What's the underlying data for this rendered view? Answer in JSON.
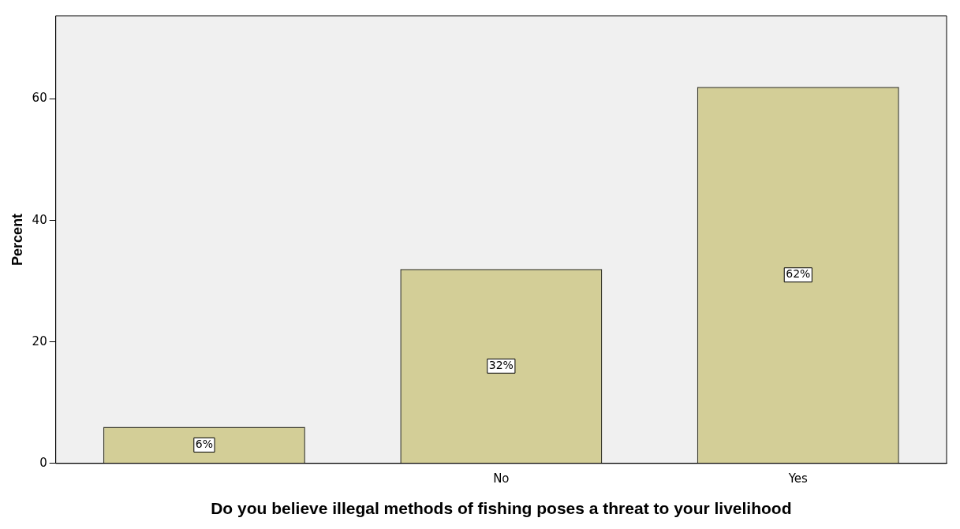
{
  "chart_data": {
    "type": "bar",
    "xlabel": "Do you believe illegal methods of fishing poses a threat to your livelihood",
    "ylabel": "Percent",
    "categories": [
      null,
      "No",
      "Yes"
    ],
    "values": [
      6,
      32,
      62
    ],
    "value_labels": [
      "6%",
      "32%",
      "62%"
    ],
    "color": "#d3ce97",
    "ylim": [
      0,
      73.7
    ],
    "yticks": [
      0,
      20,
      40,
      60
    ],
    "grid": false,
    "legend": false
  }
}
